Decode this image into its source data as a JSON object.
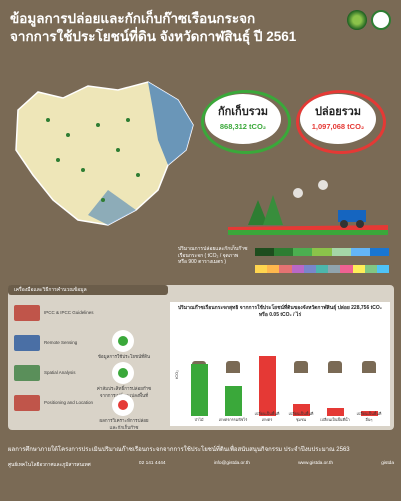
{
  "header": {
    "title_line1": "ข้อมูลการปล่อยและกักเก็บก๊าซเรือนกระจก",
    "title_line2": "จากการใช้ประโยชน์ที่ดิน จังหวัดกาฬสินธุ์ ปี 2561"
  },
  "stats": {
    "capture_label": "กักเก็บรวม",
    "capture_value": "868,312 tCO₂",
    "emit_label": "ปล่อยรวม",
    "emit_value": "1,097,068 tCO₂"
  },
  "legend": {
    "text": "ปริมาณการปล่อยและกักเก็บก๊าซเรือนกระจก ( tCO₂ / จุดภาพ หรือ 900 ตารางเมตร )",
    "top_colors": [
      "#1e4d1e",
      "#2e7d32",
      "#4caf50",
      "#8bc34a",
      "#a5d6a7",
      "#64b5f6",
      "#1976d2"
    ],
    "bottom_colors": [
      "#ffd54f",
      "#ffb74d",
      "#e57373",
      "#ba68c8",
      "#7986cb",
      "#4db6ac",
      "#90a4ae",
      "#f06292",
      "#ffee58",
      "#81c784",
      "#4fc3f7"
    ]
  },
  "methods": {
    "heading": "เครื่องมือและวิธีการคำนวณข้อมูล",
    "items": [
      {
        "label": "IPCC & IPCC Guidelines",
        "icon": "book-icon"
      },
      {
        "label": "Remote Sensing",
        "icon": "satellite-icon"
      },
      {
        "label": "Spatial Analysis",
        "icon": "analysis-icon"
      },
      {
        "label": "Positioning and Location",
        "icon": "location-icon"
      }
    ],
    "middle": [
      {
        "label": "ข้อมูลการใช้ประโยชน์ที่ดิน",
        "icon": "land-use-icon"
      },
      {
        "label": "ค่าสัมประสิทธิ์การปล่อยก๊าซจากการเปลี่ยนแปลงพื้นที่",
        "icon": "plant-icon"
      },
      {
        "label": "ผลการวิเคราะห์การปล่อยและกักเก็บก๊าซ",
        "icon": "map-pin-icon"
      }
    ]
  },
  "chart_data": {
    "type": "bar",
    "title": "ปริมาณก๊าซเรือนกระจกสุทธิ จากการใช้ประโยชน์ที่ดินของจังหวัดกาฬสินธุ์ ปล่อย 228,756 tCO₂ หรือ 0.05 tCO₂ / ไร่",
    "ylabel": "tCO₂",
    "categories": [
      "ป่าไม้",
      "เกษตรกรรมพืชไร่",
      "เปลี่ยนเป็นพื้นที่เกษตร",
      "เปลี่ยนเป็นพื้นที่ชุมชน",
      "เปลี่ยนเป็นพื้นที่น้ำ",
      "เปลี่ยนเป็นพื้นที่อื่นๆ"
    ],
    "values": [
      -52,
      -30,
      -60,
      -12,
      -8,
      -5
    ],
    "colors": [
      "#3aa83a",
      "#3aa83a",
      "#e53935",
      "#e53935",
      "#e53935",
      "#e53935"
    ]
  },
  "footer": {
    "line1": "ผลการศึกษาภายใต้โครงการประเมินปริมาณก๊าซเรือนกระจกจากการใช้ประโยชน์ที่ดินเพื่อสนับสนุนกิจกรรม ประจำปีงบประมาณ 2563",
    "org": "ศูนย์เทคโนโลยีอวกาศและภูมิสารสนเทศ",
    "phone": "02 141 4444",
    "email": "info@gistda.or.th",
    "web": "www.gistda.or.th",
    "social": "gistda"
  },
  "colors": {
    "background": "#7a6a55",
    "accent_red": "#e53935",
    "accent_green": "#3aa83a"
  }
}
